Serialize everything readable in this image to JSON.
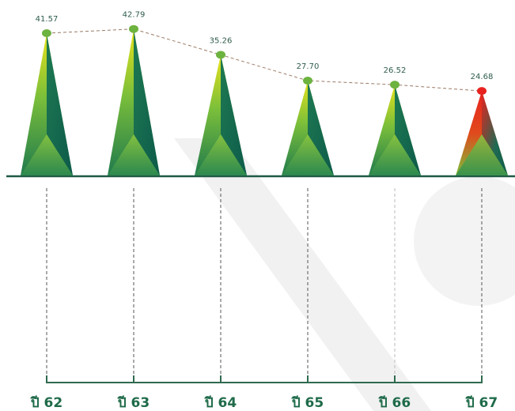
{
  "chart_data": {
    "type": "pyramid",
    "categories": [
      "ปี 62",
      "ปี 63",
      "ปี 64",
      "ปี 65",
      "ปี 66",
      "ปี 67"
    ],
    "values": [
      41.57,
      42.79,
      35.26,
      27.7,
      26.52,
      24.68
    ],
    "value_labels": [
      "41.57",
      "42.79",
      "35.26",
      "27.70",
      "26.52",
      "24.68"
    ],
    "colors": [
      "#6db33f",
      "#6db33f",
      "#6db33f",
      "#6db33f",
      "#6db33f",
      "#e8231f"
    ],
    "line_color": "#9a7a66"
  }
}
